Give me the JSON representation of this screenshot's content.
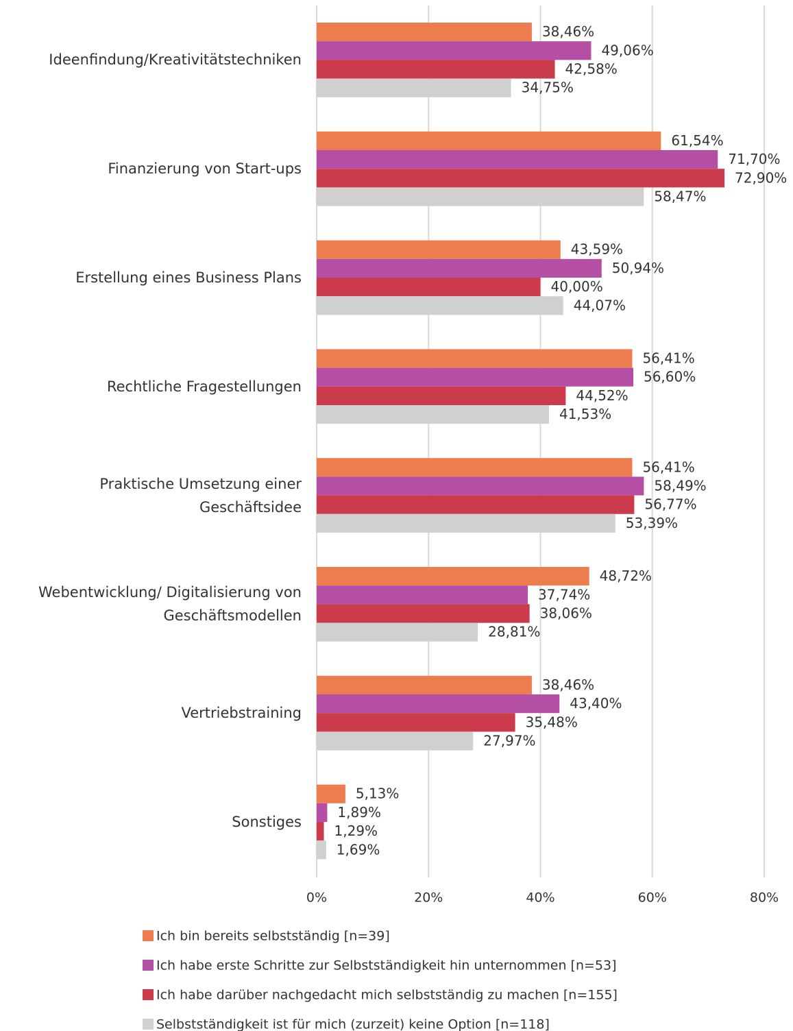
{
  "chart_data": {
    "type": "bar",
    "orientation": "horizontal",
    "categories": [
      "Ideenfindung/Kreativitätstechniken",
      "Finanzierung von Start-ups",
      "Erstellung eines Business Plans",
      "Rechtliche Fragestellungen",
      "Praktische Umsetzung einer Geschäftsidee",
      "Webentwicklung/ Digitalisierung von Geschäftsmodellen",
      "Vertriebstraining",
      "Sonstiges"
    ],
    "series": [
      {
        "name": "Ich bin bereits selbstständig [n=39]",
        "color": "#ed7d4f",
        "values": [
          38.46,
          61.54,
          43.59,
          56.41,
          56.41,
          48.72,
          38.46,
          5.13
        ],
        "value_labels": [
          "38,46%",
          "61,54%",
          "43,59%",
          "56,41%",
          "56,41%",
          "48,72%",
          "38,46%",
          "5,13%"
        ]
      },
      {
        "name": "Ich habe erste Schritte zur Selbstständigkeit hin unternommen [n=53]",
        "color": "#b54fa5",
        "values": [
          49.06,
          71.7,
          50.94,
          56.6,
          58.49,
          37.74,
          43.4,
          1.89
        ],
        "value_labels": [
          "49,06%",
          "71,70%",
          "50,94%",
          "56,60%",
          "58,49%",
          "37,74%",
          "43,40%",
          "1,89%"
        ]
      },
      {
        "name": "Ich habe darüber nachgedacht mich selbstständig zu machen [n=155]",
        "color": "#cc3b4c",
        "values": [
          42.58,
          72.9,
          40.0,
          44.52,
          56.77,
          38.06,
          35.48,
          1.29
        ],
        "value_labels": [
          "42,58%",
          "72,90%",
          "40,00%",
          "44,52%",
          "56,77%",
          "38,06%",
          "35,48%",
          "1,29%"
        ]
      },
      {
        "name": "Selbstständigkeit ist für mich (zurzeit) keine Option [n=118]",
        "color": "#d0d0d0",
        "values": [
          34.75,
          58.47,
          44.07,
          41.53,
          53.39,
          28.81,
          27.97,
          1.69
        ],
        "value_labels": [
          "34,75%",
          "58,47%",
          "44,07%",
          "41,53%",
          "53,39%",
          "28,81%",
          "27,97%",
          "1,69%"
        ]
      }
    ],
    "xlim": [
      0,
      80
    ],
    "xticks": [
      {
        "value": 0,
        "label": "0%"
      },
      {
        "value": 20,
        "label": "20%"
      },
      {
        "value": 40,
        "label": "40%"
      },
      {
        "value": 60,
        "label": "60%"
      },
      {
        "value": 80,
        "label": "80%"
      }
    ],
    "grid": true,
    "legend": "bottom"
  }
}
